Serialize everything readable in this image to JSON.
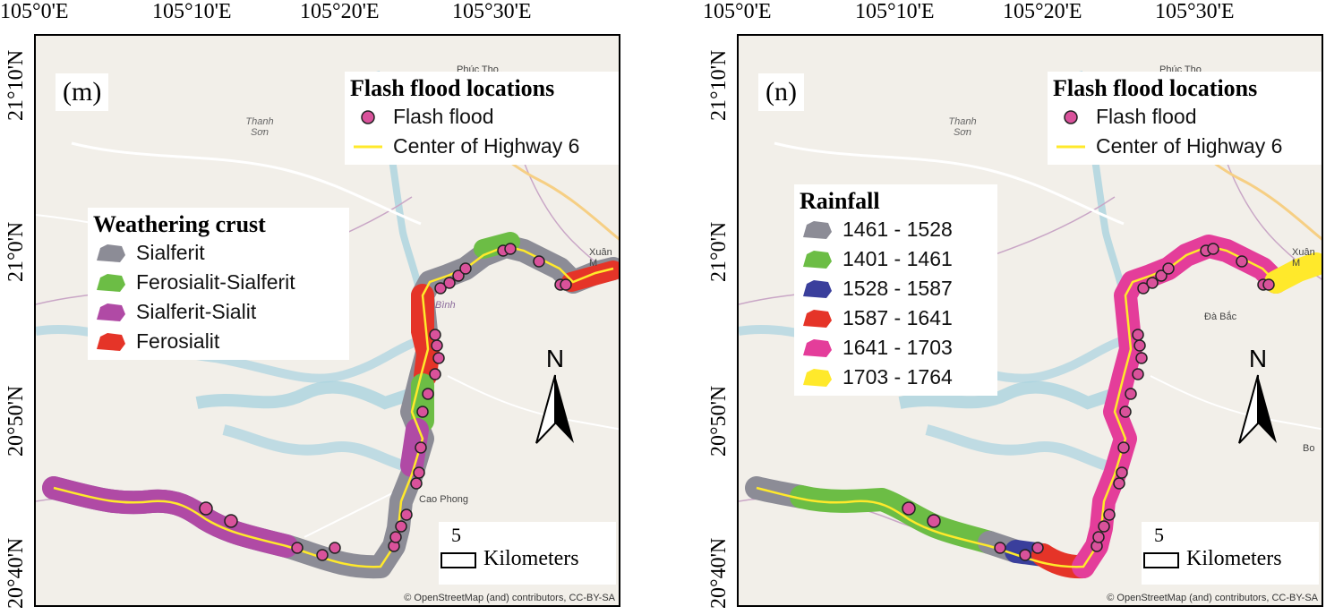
{
  "panels": [
    {
      "tag": "(m)",
      "lon_ticks": [
        "105°0'E",
        "105°10'E",
        "105°20'E",
        "105°30'E"
      ],
      "lat_ticks": [
        "21°10'N",
        "21°0'N",
        "20°50'N",
        "20°40'N"
      ],
      "flash_legend": {
        "title": "Flash flood locations",
        "items": [
          {
            "label": "Flash flood",
            "symbol": "pink-circle-icon",
            "color": "#d9529b"
          },
          {
            "label": "Center of Highway 6",
            "symbol": "yellow-line-icon",
            "color": "#ffe92b"
          }
        ]
      },
      "class_legend": {
        "title": "Weathering crust",
        "items": [
          {
            "label": "Sialferit",
            "color": "#8c8c96"
          },
          {
            "label": "Ferosialit-Sialferit",
            "color": "#6cbd45"
          },
          {
            "label": "Sialferit-Sialit",
            "color": "#b04aa5"
          },
          {
            "label": "Ferosialit",
            "color": "#e53428"
          }
        ]
      },
      "north_letter": "N",
      "scale": {
        "value": "5",
        "unit": "Kilometers"
      },
      "attribution": "© OpenStreetMap (and) contributors, CC-BY-SA",
      "place_names": {
        "thanh_son": "Thanh\nSơn",
        "phuc_tho": "Phúc Thọ",
        "xuan_mai": "Xuân M",
        "cao_phong": "Cao Phong",
        "binh": "Bình"
      }
    },
    {
      "tag": "(n)",
      "lon_ticks": [
        "105°0'E",
        "105°10'E",
        "105°20'E",
        "105°30'E"
      ],
      "lat_ticks": [
        "21°10'N",
        "21°0'N",
        "20°50'N",
        "20°40'N"
      ],
      "flash_legend": {
        "title": "Flash flood locations",
        "items": [
          {
            "label": "Flash flood",
            "symbol": "pink-circle-icon",
            "color": "#d9529b"
          },
          {
            "label": "Center of Highway 6",
            "symbol": "yellow-line-icon",
            "color": "#ffe92b"
          }
        ]
      },
      "class_legend": {
        "title": "Rainfall",
        "items": [
          {
            "label": "1461 - 1528",
            "color": "#8c8c96"
          },
          {
            "label": "1401 - 1461",
            "color": "#6cbd45"
          },
          {
            "label": "1528 - 1587",
            "color": "#3a3f9c"
          },
          {
            "label": "1587 - 1641",
            "color": "#e53428"
          },
          {
            "label": "1641 - 1703",
            "color": "#e43d9a"
          },
          {
            "label": "1703 - 1764",
            "color": "#ffe92b"
          }
        ]
      },
      "north_letter": "N",
      "scale": {
        "value": "5",
        "unit": "Kilometers"
      },
      "attribution": "© OpenStreetMap (and) contributors, CC-BY-SA",
      "place_names": {
        "thanh_son": "Thanh\nSơn",
        "phuc_tho": "Phúc Thọ",
        "xuan_mai": "Xuân M",
        "da_bac": "Đà Bắc",
        "bo": "Bo"
      }
    }
  ]
}
